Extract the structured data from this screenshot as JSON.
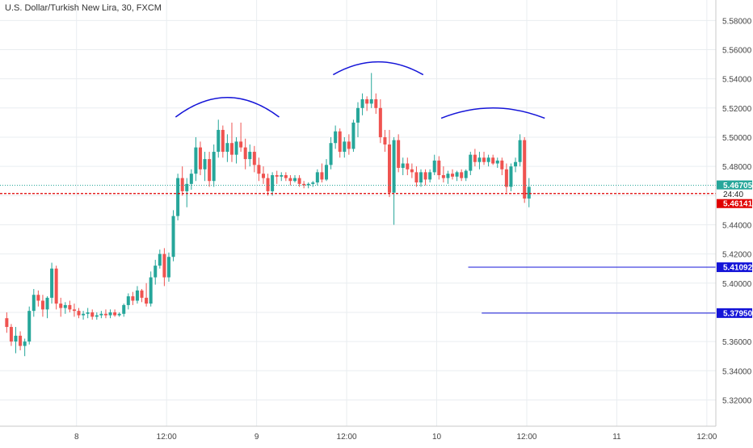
{
  "title": "U.S. Dollar/Turkish New Lira, 30, FXCM",
  "colors": {
    "up": "#26a69a",
    "down": "#ef5350",
    "grid": "#e9edf0",
    "axis_text": "#444444",
    "current_line": "#26a69a",
    "bid_line": "#e00000",
    "support": "#1515d8",
    "arc": "#1515d8"
  },
  "chart_data": {
    "type": "candlestick",
    "title": "U.S. Dollar/Turkish New Lira, 30, FXCM",
    "interval": "30",
    "ylim": [
      5.302,
      5.594
    ],
    "y_ticks": [
      5.32,
      5.34,
      5.36,
      5.38,
      5.4,
      5.42,
      5.44,
      5.46,
      5.48,
      5.5,
      5.52,
      5.54,
      5.56,
      5.58
    ],
    "y_tick_labels": [
      "5.32000",
      "5.34000",
      "5.36000",
      "5.38000",
      "5.40000",
      "5.42000",
      "5.44000",
      "5.46000",
      "5.48000",
      "5.50000",
      "5.52000",
      "5.54000",
      "5.56000",
      "5.58000"
    ],
    "x_ticks": [
      {
        "label": "8",
        "bar": 16
      },
      {
        "label": "12:00",
        "bar": 36
      },
      {
        "label": "9",
        "bar": 56
      },
      {
        "label": "12:00",
        "bar": 76
      },
      {
        "label": "10",
        "bar": 96
      },
      {
        "label": "12:00",
        "bar": 116
      },
      {
        "label": "11",
        "bar": 136
      },
      {
        "label": "12:00",
        "bar": 156
      }
    ],
    "bars_visible_window": [
      -1,
      158
    ],
    "candles": [
      [
        5.376,
        5.38,
        5.366,
        5.37
      ],
      [
        5.37,
        5.372,
        5.357,
        5.36
      ],
      [
        5.36,
        5.37,
        5.352,
        5.364
      ],
      [
        5.364,
        5.367,
        5.354,
        5.357
      ],
      [
        5.357,
        5.362,
        5.35,
        5.36
      ],
      [
        5.36,
        5.384,
        5.358,
        5.381
      ],
      [
        5.381,
        5.396,
        5.377,
        5.392
      ],
      [
        5.392,
        5.395,
        5.384,
        5.388
      ],
      [
        5.388,
        5.392,
        5.377,
        5.382
      ],
      [
        5.382,
        5.391,
        5.376,
        5.39
      ],
      [
        5.39,
        5.414,
        5.386,
        5.41
      ],
      [
        5.41,
        5.412,
        5.382,
        5.386
      ],
      [
        5.386,
        5.39,
        5.377,
        5.383
      ],
      [
        5.383,
        5.387,
        5.379,
        5.385
      ],
      [
        5.385,
        5.388,
        5.38,
        5.382
      ],
      [
        5.382,
        5.386,
        5.377,
        5.381
      ],
      [
        5.381,
        5.383,
        5.376,
        5.378
      ],
      [
        5.378,
        5.381,
        5.375,
        5.379
      ],
      [
        5.379,
        5.383,
        5.376,
        5.38
      ],
      [
        5.38,
        5.382,
        5.375,
        5.377
      ],
      [
        5.377,
        5.38,
        5.375,
        5.378
      ],
      [
        5.378,
        5.381,
        5.376,
        5.379
      ],
      [
        5.379,
        5.382,
        5.376,
        5.378
      ],
      [
        5.378,
        5.382,
        5.376,
        5.38
      ],
      [
        5.38,
        5.382,
        5.377,
        5.378
      ],
      [
        5.378,
        5.38,
        5.377,
        5.379
      ],
      [
        5.379,
        5.386,
        5.377,
        5.385
      ],
      [
        5.385,
        5.393,
        5.382,
        5.391
      ],
      [
        5.391,
        5.394,
        5.385,
        5.388
      ],
      [
        5.388,
        5.398,
        5.386,
        5.395
      ],
      [
        5.395,
        5.396,
        5.387,
        5.39
      ],
      [
        5.39,
        5.4,
        5.384,
        5.386
      ],
      [
        5.386,
        5.408,
        5.384,
        5.404
      ],
      [
        5.404,
        5.416,
        5.399,
        5.412
      ],
      [
        5.412,
        5.423,
        5.41,
        5.42
      ],
      [
        5.42,
        5.424,
        5.398,
        5.404
      ],
      [
        5.404,
        5.421,
        5.401,
        5.418
      ],
      [
        5.418,
        5.45,
        5.415,
        5.446
      ],
      [
        5.446,
        5.475,
        5.443,
        5.472
      ],
      [
        5.472,
        5.48,
        5.46,
        5.463
      ],
      [
        5.463,
        5.472,
        5.452,
        5.468
      ],
      [
        5.468,
        5.478,
        5.464,
        5.475
      ],
      [
        5.475,
        5.5,
        5.47,
        5.493
      ],
      [
        5.493,
        5.497,
        5.474,
        5.478
      ],
      [
        5.478,
        5.49,
        5.47,
        5.485
      ],
      [
        5.485,
        5.49,
        5.466,
        5.47
      ],
      [
        5.47,
        5.495,
        5.466,
        5.49
      ],
      [
        5.49,
        5.512,
        5.486,
        5.505
      ],
      [
        5.505,
        5.508,
        5.486,
        5.49
      ],
      [
        5.49,
        5.502,
        5.483,
        5.496
      ],
      [
        5.496,
        5.51,
        5.483,
        5.488
      ],
      [
        5.488,
        5.5,
        5.482,
        5.497
      ],
      [
        5.497,
        5.51,
        5.49,
        5.493
      ],
      [
        5.493,
        5.499,
        5.478,
        5.485
      ],
      [
        5.485,
        5.495,
        5.48,
        5.49
      ],
      [
        5.49,
        5.494,
        5.476,
        5.481
      ],
      [
        5.481,
        5.486,
        5.47,
        5.475
      ],
      [
        5.475,
        5.48,
        5.468,
        5.472
      ],
      [
        5.472,
        5.475,
        5.46,
        5.463
      ],
      [
        5.463,
        5.476,
        5.46,
        5.474
      ],
      [
        5.474,
        5.477,
        5.468,
        5.473
      ],
      [
        5.473,
        5.476,
        5.47,
        5.474
      ],
      [
        5.474,
        5.476,
        5.47,
        5.472
      ],
      [
        5.472,
        5.474,
        5.467,
        5.47
      ],
      [
        5.47,
        5.474,
        5.469,
        5.472
      ],
      [
        5.472,
        5.474,
        5.466,
        5.468
      ],
      [
        5.468,
        5.47,
        5.465,
        5.467
      ],
      [
        5.467,
        5.469,
        5.465,
        5.468
      ],
      [
        5.468,
        5.47,
        5.466,
        5.469
      ],
      [
        5.469,
        5.478,
        5.467,
        5.476
      ],
      [
        5.476,
        5.482,
        5.469,
        5.471
      ],
      [
        5.471,
        5.485,
        5.47,
        5.481
      ],
      [
        5.481,
        5.5,
        5.478,
        5.496
      ],
      [
        5.496,
        5.508,
        5.492,
        5.504
      ],
      [
        5.504,
        5.506,
        5.486,
        5.49
      ],
      [
        5.49,
        5.5,
        5.486,
        5.497
      ],
      [
        5.497,
        5.502,
        5.488,
        5.492
      ],
      [
        5.492,
        5.512,
        5.49,
        5.51
      ],
      [
        5.51,
        5.524,
        5.5,
        5.52
      ],
      [
        5.52,
        5.53,
        5.515,
        5.526
      ],
      [
        5.526,
        5.528,
        5.518,
        5.523
      ],
      [
        5.523,
        5.544,
        5.52,
        5.526
      ],
      [
        5.526,
        5.53,
        5.516,
        5.52
      ],
      [
        5.52,
        5.526,
        5.496,
        5.5
      ],
      [
        5.5,
        5.505,
        5.49,
        5.495
      ],
      [
        5.495,
        5.505,
        5.459,
        5.462
      ],
      [
        5.462,
        5.5,
        5.44,
        5.498
      ],
      [
        5.498,
        5.502,
        5.476,
        5.479
      ],
      [
        5.479,
        5.486,
        5.474,
        5.482
      ],
      [
        5.482,
        5.486,
        5.474,
        5.478
      ],
      [
        5.478,
        5.482,
        5.472,
        5.476
      ],
      [
        5.476,
        5.48,
        5.466,
        5.469
      ],
      [
        5.469,
        5.478,
        5.466,
        5.476
      ],
      [
        5.476,
        5.478,
        5.467,
        5.471
      ],
      [
        5.471,
        5.478,
        5.469,
        5.476
      ],
      [
        5.476,
        5.488,
        5.474,
        5.484
      ],
      [
        5.484,
        5.487,
        5.471,
        5.474
      ],
      [
        5.474,
        5.48,
        5.469,
        5.472
      ],
      [
        5.472,
        5.477,
        5.468,
        5.475
      ],
      [
        5.475,
        5.478,
        5.471,
        5.473
      ],
      [
        5.473,
        5.477,
        5.47,
        5.476
      ],
      [
        5.476,
        5.478,
        5.47,
        5.472
      ],
      [
        5.472,
        5.478,
        5.47,
        5.477
      ],
      [
        5.477,
        5.49,
        5.474,
        5.488
      ],
      [
        5.488,
        5.492,
        5.48,
        5.483
      ],
      [
        5.483,
        5.49,
        5.478,
        5.486
      ],
      [
        5.486,
        5.49,
        5.481,
        5.483
      ],
      [
        5.483,
        5.488,
        5.48,
        5.486
      ],
      [
        5.486,
        5.488,
        5.481,
        5.482
      ],
      [
        5.482,
        5.486,
        5.479,
        5.484
      ],
      [
        5.484,
        5.486,
        5.474,
        5.478
      ],
      [
        5.478,
        5.482,
        5.462,
        5.466
      ],
      [
        5.466,
        5.482,
        5.463,
        5.48
      ],
      [
        5.48,
        5.486,
        5.476,
        5.483
      ],
      [
        5.483,
        5.502,
        5.48,
        5.498
      ],
      [
        5.498,
        5.5,
        5.455,
        5.458
      ],
      [
        5.458,
        5.472,
        5.452,
        5.466
      ]
    ],
    "lines": {
      "current_price": 5.46705,
      "current_price_label": "5.46705",
      "bid_price": 5.46141,
      "bid_price_label": "5.46141",
      "countdown": "24:40",
      "support_levels": [
        {
          "value": 5.41092,
          "label": "5.41092",
          "from_bar": 103
        },
        {
          "value": 5.3795,
          "label": "5.37950",
          "from_bar": 106
        }
      ]
    },
    "annotations": {
      "arcs": [
        {
          "from_bar": 38,
          "to_bar": 61,
          "base": 5.5138,
          "peak": 5.5272
        },
        {
          "from_bar": 73,
          "to_bar": 93,
          "base": 5.5428,
          "peak": 5.5516
        },
        {
          "from_bar": 97,
          "to_bar": 120,
          "base": 5.513,
          "peak": 5.52
        }
      ]
    }
  }
}
